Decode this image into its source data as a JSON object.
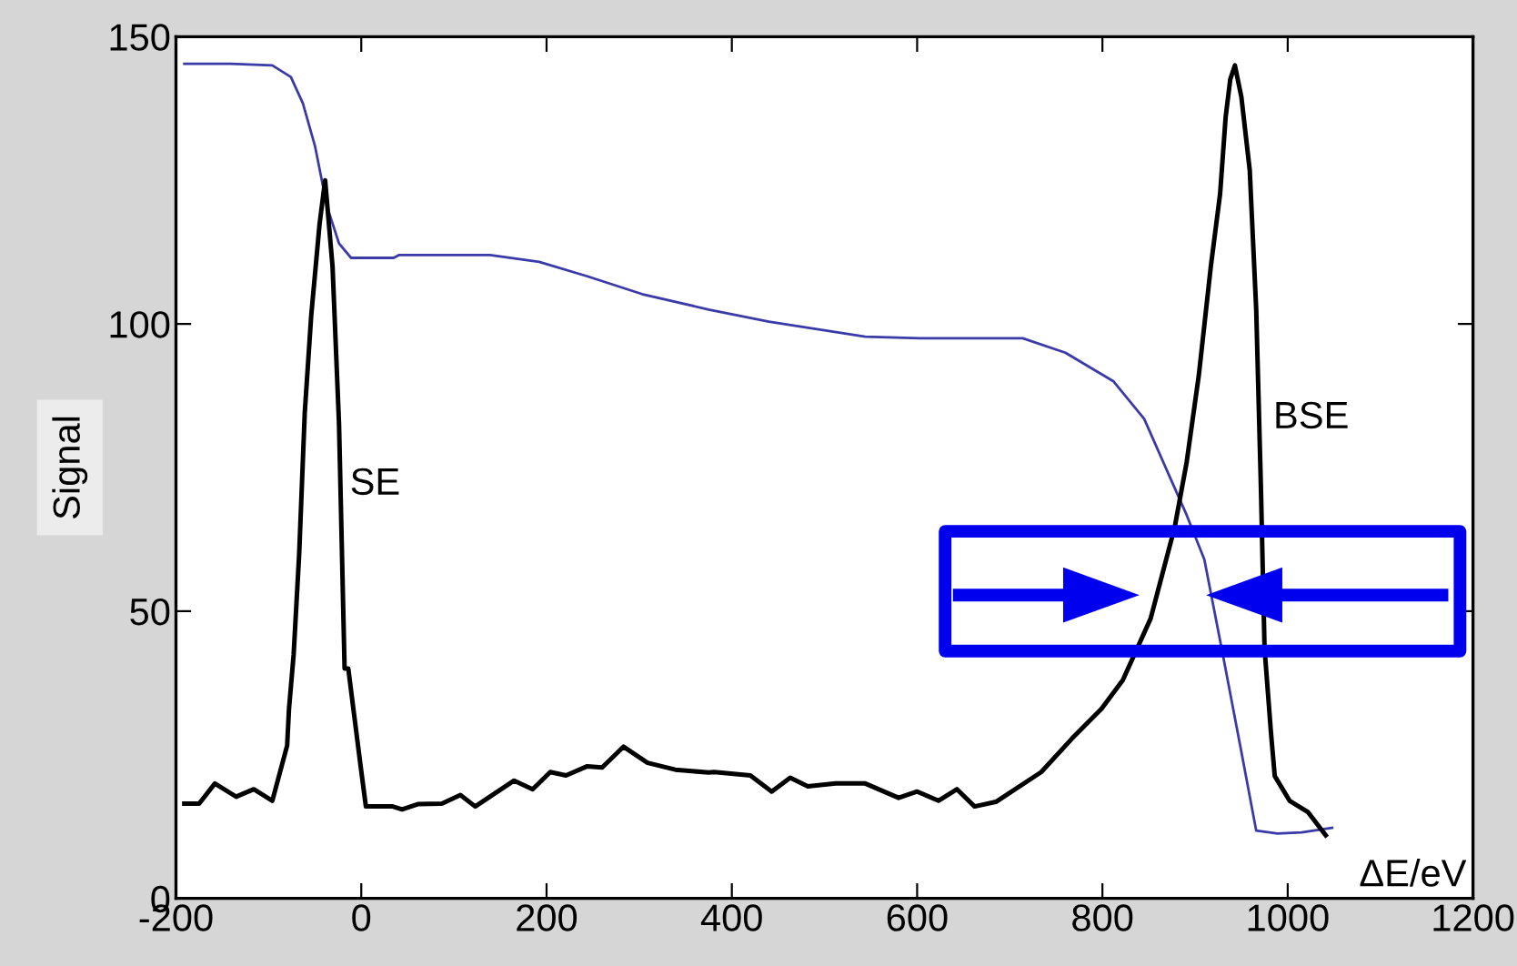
{
  "chart_data": {
    "type": "line",
    "xlabel": "ΔE/eV",
    "ylabel": "Signal",
    "xlim": [
      -200,
      1200
    ],
    "xticks": [
      -200,
      0,
      200,
      400,
      600,
      800,
      1000,
      1200
    ],
    "ylim": [
      0,
      150
    ],
    "yticks": [
      0,
      50,
      100,
      150
    ],
    "grid": false,
    "marker": "none",
    "line_style": "solid",
    "series": [
      {
        "color": "#000000",
        "x": [
          -191,
          -175,
          -158,
          -135,
          -116,
          -96,
          -80,
          -78,
          -73,
          -67,
          -61,
          -54,
          -45,
          -39,
          -31,
          -24,
          -18,
          -14,
          -1,
          5,
          34,
          44,
          61,
          87,
          107,
          123,
          165,
          185,
          204,
          221,
          244,
          260,
          283,
          309,
          339,
          375,
          381,
          420,
          443,
          463,
          482,
          512,
          544,
          580,
          600,
          623,
          643,
          662,
          685,
          734,
          767,
          799,
          822,
          852,
          878,
          891,
          904,
          917,
          927,
          933,
          938,
          943,
          950,
          959,
          966,
          971,
          975,
          982,
          986,
          1002,
          1022,
          1041
        ],
        "values": [
          16.5,
          16.5,
          20,
          17.7,
          19,
          17,
          26.6,
          33,
          42.4,
          60,
          84.5,
          101.5,
          117.4,
          125,
          110,
          82.6,
          40,
          40,
          23.4,
          16,
          16,
          15.5,
          16.4,
          16.5,
          18,
          16,
          20.5,
          19,
          22,
          21.4,
          23,
          22.8,
          26.4,
          23.6,
          22.4,
          21.9,
          22,
          21.4,
          18.6,
          21,
          19.5,
          20,
          20,
          17.5,
          18.6,
          17,
          19,
          16,
          16.8,
          22,
          27.8,
          33,
          38,
          48.7,
          64.6,
          76,
          91,
          110,
          122.6,
          136,
          142.6,
          145,
          139.5,
          126.8,
          102.5,
          72,
          43.5,
          28.7,
          21.3,
          17,
          15,
          11
        ]
      },
      {
        "color": "#3a3aa8",
        "x": [
          -191,
          -142,
          -96,
          -76,
          -63,
          -50,
          -37,
          -24,
          -11,
          35,
          41,
          139,
          192,
          244,
          303,
          375,
          440,
          544,
          603,
          714,
          760,
          812,
          845,
          871,
          891,
          910,
          930,
          950,
          966,
          989,
          1015,
          1048
        ],
        "values": [
          145.3,
          145.3,
          145,
          143,
          138.4,
          131,
          120.5,
          114,
          111.5,
          111.5,
          112,
          112,
          110.8,
          108.3,
          105.2,
          102.5,
          100.4,
          97.8,
          97.5,
          97.5,
          95,
          90,
          83.5,
          74,
          66.7,
          59,
          42.4,
          25.5,
          11.8,
          11.3,
          11.5,
          12.3
        ]
      }
    ],
    "annotations": [
      "SE",
      "BSE"
    ]
  }
}
